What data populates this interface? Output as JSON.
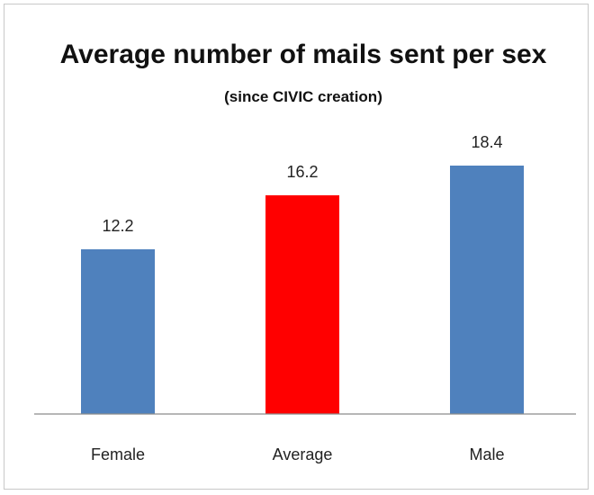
{
  "chart_data": {
    "type": "bar",
    "title": "Average number of mails sent per sex",
    "subtitle": "(since CIVIC creation)",
    "categories": [
      "Female",
      "Average",
      "Male"
    ],
    "values": [
      12.2,
      16.2,
      18.4
    ],
    "data_labels": [
      "12.2",
      "16.2",
      "18.4"
    ],
    "bar_colors": [
      "#4F81BD",
      "#FF0000",
      "#4F81BD"
    ],
    "ylim": [
      0,
      20
    ],
    "grid": false,
    "legend": "none",
    "xlabel": "",
    "ylabel": ""
  }
}
